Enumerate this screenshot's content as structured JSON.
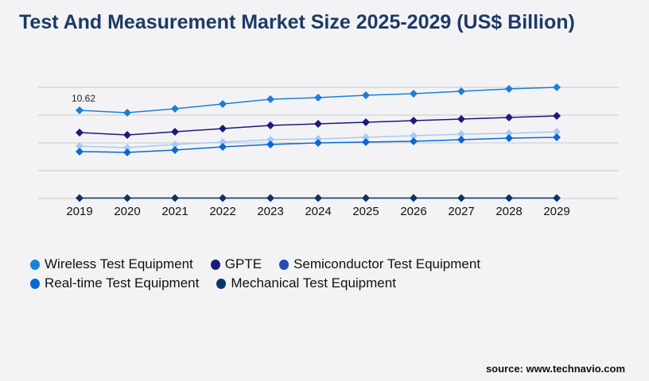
{
  "chart_data": {
    "type": "line",
    "title": "Test And Measurement Market Size 2025-2029 (US$ Billion)",
    "categories": [
      "2019",
      "2020",
      "2021",
      "2022",
      "2023",
      "2024",
      "2025",
      "2026",
      "2027",
      "2028",
      "2029"
    ],
    "ylim": [
      0,
      14
    ],
    "grid": true,
    "legend_placement": "bottom-left",
    "annotations": [
      {
        "x": "2019",
        "series": "Wireless Test Equipment",
        "text": "10.62"
      }
    ],
    "series": [
      {
        "name": "Wireless Test Equipment",
        "color": "#1b7fd6",
        "values": [
          10.62,
          10.33,
          10.81,
          11.39,
          11.96,
          12.15,
          12.44,
          12.63,
          12.92,
          13.2,
          13.4
        ]
      },
      {
        "name": "GPTE",
        "color": "#1b1a7e",
        "values": [
          7.94,
          7.65,
          8.04,
          8.42,
          8.8,
          8.99,
          9.18,
          9.38,
          9.57,
          9.76,
          9.95
        ]
      },
      {
        "name": "Semiconductor Test Equipment",
        "color": "#a9c9f7",
        "legend_color": "#1f4fb0",
        "values": [
          6.31,
          6.12,
          6.51,
          6.79,
          7.08,
          7.18,
          7.37,
          7.56,
          7.75,
          7.85,
          8.04
        ]
      },
      {
        "name": "Real-time Test Equipment",
        "color": "#0b68d2",
        "values": [
          5.65,
          5.55,
          5.84,
          6.22,
          6.51,
          6.7,
          6.79,
          6.89,
          7.08,
          7.27,
          7.37
        ]
      },
      {
        "name": "Mechanical Test Equipment",
        "color": "#0b3567",
        "values": [
          0.05,
          0.05,
          0.05,
          0.05,
          0.05,
          0.05,
          0.05,
          0.05,
          0.05,
          0.05,
          0.05
        ]
      }
    ]
  },
  "source": "source: www.technavio.com"
}
